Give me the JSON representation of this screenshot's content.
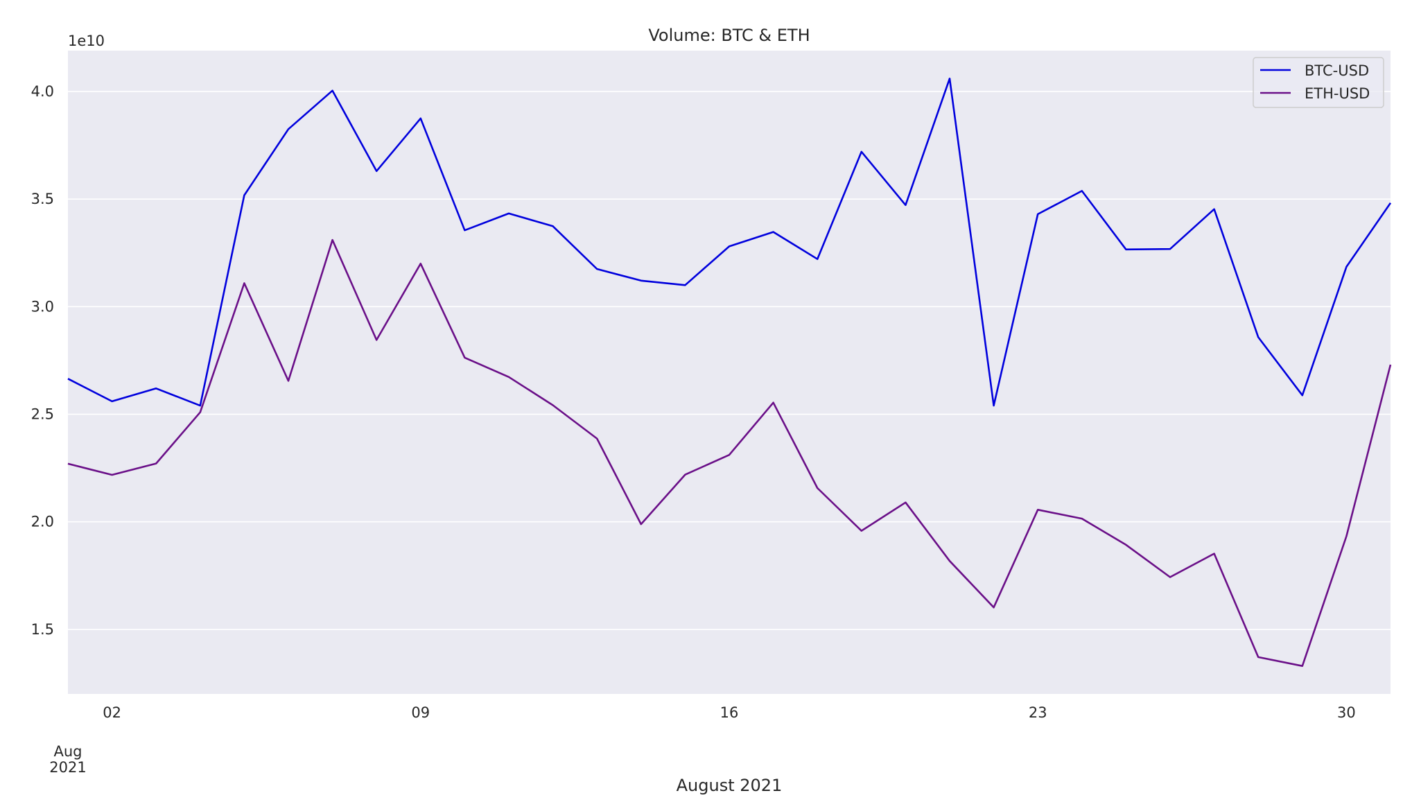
{
  "chart_data": {
    "type": "line",
    "title": "Volume: BTC & ETH",
    "xlabel": "August 2021",
    "ylabel": "",
    "offset_label": "1e10",
    "y_scale_factor": 10000000000,
    "x": [
      "2021-08-01",
      "2021-08-02",
      "2021-08-03",
      "2021-08-04",
      "2021-08-05",
      "2021-08-06",
      "2021-08-07",
      "2021-08-08",
      "2021-08-09",
      "2021-08-10",
      "2021-08-11",
      "2021-08-12",
      "2021-08-13",
      "2021-08-14",
      "2021-08-15",
      "2021-08-16",
      "2021-08-17",
      "2021-08-18",
      "2021-08-19",
      "2021-08-20",
      "2021-08-21",
      "2021-08-22",
      "2021-08-23",
      "2021-08-24",
      "2021-08-25",
      "2021-08-26",
      "2021-08-27",
      "2021-08-28",
      "2021-08-29",
      "2021-08-30",
      "2021-08-31"
    ],
    "x_ticks": [
      {
        "date": "2021-08-02",
        "label": "02"
      },
      {
        "date": "2021-08-09",
        "label": "09"
      },
      {
        "date": "2021-08-16",
        "label": "16"
      },
      {
        "date": "2021-08-23",
        "label": "23"
      },
      {
        "date": "2021-08-30",
        "label": "30"
      }
    ],
    "x_ticks_extra": {
      "date": "2021-08-01",
      "month": "Aug",
      "year": "2021"
    },
    "y_ticks": [
      {
        "value": 15000000000,
        "label": "1.5"
      },
      {
        "value": 20000000000,
        "label": "2.0"
      },
      {
        "value": 25000000000,
        "label": "2.5"
      },
      {
        "value": 30000000000,
        "label": "3.0"
      },
      {
        "value": 35000000000,
        "label": "3.5"
      },
      {
        "value": 40000000000,
        "label": "4.0"
      }
    ],
    "ylim": [
      12000000000,
      41900000000
    ],
    "grid": true,
    "legend_position": "top-right",
    "series": [
      {
        "name": "BTC-USD",
        "color": "#0000dd",
        "values": [
          26650000000,
          25600000000,
          26200000000,
          25400000000,
          35180000000,
          38250000000,
          40040000000,
          36300000000,
          38750000000,
          33550000000,
          34330000000,
          33740000000,
          31750000000,
          31210000000,
          31000000000,
          32800000000,
          33470000000,
          32210000000,
          37200000000,
          34720000000,
          40600000000,
          25400000000,
          34300000000,
          35380000000,
          32660000000,
          32680000000,
          34530000000,
          28580000000,
          25880000000,
          31850000000,
          34820000000
        ]
      },
      {
        "name": "ETH-USD",
        "color": "#6a0f88",
        "values": [
          22700000000,
          22180000000,
          22710000000,
          25090000000,
          31090000000,
          26550000000,
          33100000000,
          28450000000,
          32000000000,
          27630000000,
          26730000000,
          25420000000,
          23870000000,
          19890000000,
          22190000000,
          23110000000,
          25540000000,
          21570000000,
          19580000000,
          20900000000,
          18180000000,
          16020000000,
          20560000000,
          20150000000,
          18930000000,
          17430000000,
          18520000000,
          13710000000,
          13300000000,
          19330000000,
          27300000000
        ]
      }
    ]
  }
}
